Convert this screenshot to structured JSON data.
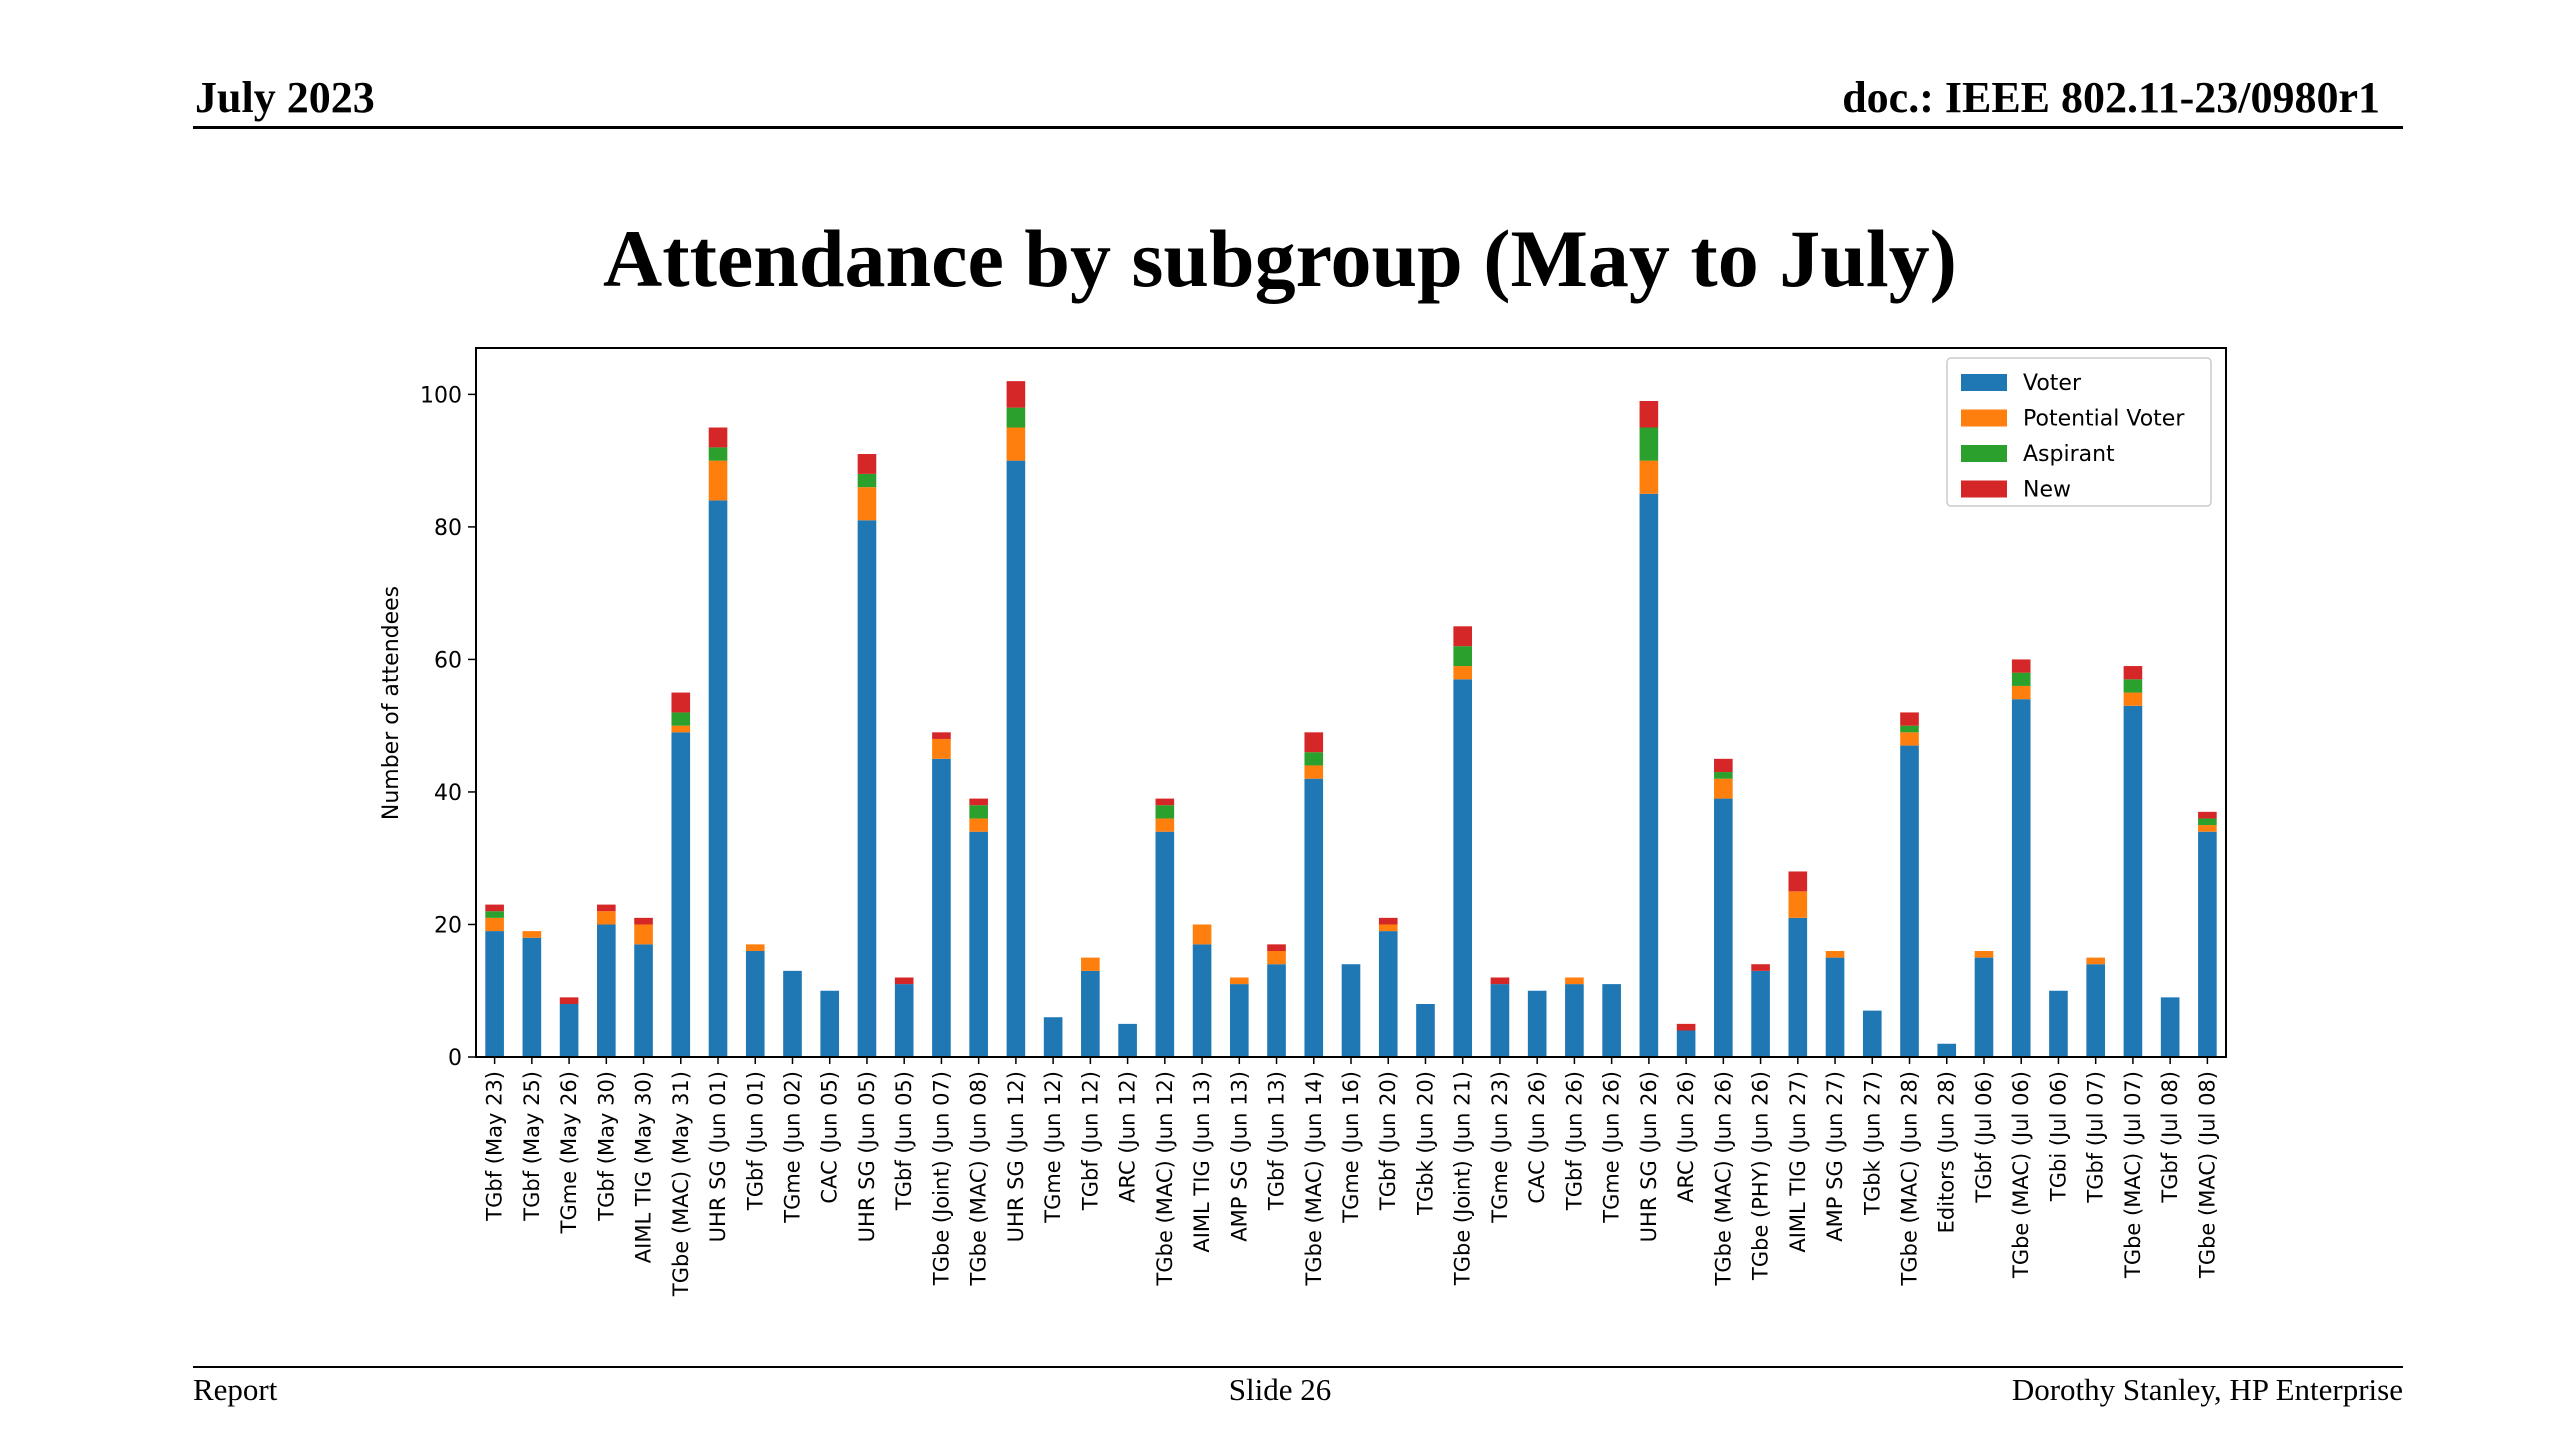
{
  "header": {
    "date": "July 2023",
    "doc_id": "doc.: IEEE 802.11-23/0980r1"
  },
  "slide_title": "Attendance by subgroup (May to July)",
  "footer": {
    "left": "Report",
    "center": "Slide 26",
    "right": "Dorothy Stanley, HP Enterprise"
  },
  "colors": {
    "Voter": "#1f77b4",
    "Potential Voter": "#ff7f0e",
    "Aspirant": "#2ca02c",
    "New": "#d62728"
  },
  "chart_data": {
    "type": "bar",
    "stacked": true,
    "title": "",
    "xlabel": "",
    "ylabel": "Number of attendees",
    "ylim": [
      0,
      107
    ],
    "yticks": [
      0,
      20,
      40,
      60,
      80,
      100
    ],
    "legend_position": "top-right",
    "grid": false,
    "categories": [
      "TGbf (May 23)",
      "TGbf (May 25)",
      "TGme (May 26)",
      "TGbf (May 30)",
      "AIML TIG (May 30)",
      "TGbe (MAC) (May 31)",
      "UHR SG (Jun 01)",
      "TGbf (Jun 01)",
      "TGme (Jun 02)",
      "CAC (Jun 05)",
      "UHR SG (Jun 05)",
      "TGbf (Jun 05)",
      "TGbe (Joint) (Jun 07)",
      "TGbe (MAC) (Jun 08)",
      "UHR SG (Jun 12)",
      "TGme (Jun 12)",
      "TGbf (Jun 12)",
      "ARC (Jun 12)",
      "TGbe (MAC) (Jun 12)",
      "AIML TIG (Jun 13)",
      "AMP SG (Jun 13)",
      "TGbf (Jun 13)",
      "TGbe (MAC) (Jun 14)",
      "TGme (Jun 16)",
      "TGbf (Jun 20)",
      "TGbk (Jun 20)",
      "TGbe (Joint) (Jun 21)",
      "TGme (Jun 23)",
      "CAC (Jun 26)",
      "TGbf (Jun 26)",
      "TGme (Jun 26)",
      "UHR SG (Jun 26)",
      "ARC (Jun 26)",
      "TGbe (MAC) (Jun 26)",
      "TGbe (PHY) (Jun 26)",
      "AIML TIG (Jun 27)",
      "AMP SG (Jun 27)",
      "TGbk (Jun 27)",
      "TGbe (MAC) (Jun 28)",
      "Editors (Jun 28)",
      "TGbf (Jul 06)",
      "TGbe (MAC) (Jul 06)",
      "TGbi (Jul 06)",
      "TGbf (Jul 07)",
      "TGbe (MAC) (Jul 07)",
      "TGbf (Jul 08)",
      "TGbe (MAC) (Jul 08)"
    ],
    "series": [
      {
        "name": "Voter",
        "values": [
          19,
          18,
          8,
          20,
          17,
          49,
          84,
          16,
          13,
          10,
          81,
          11,
          45,
          34,
          90,
          6,
          13,
          5,
          34,
          17,
          11,
          14,
          42,
          14,
          19,
          8,
          57,
          11,
          10,
          11,
          11,
          85,
          4,
          39,
          13,
          21,
          15,
          7,
          47,
          2,
          15,
          54,
          10,
          14,
          53,
          9,
          34
        ]
      },
      {
        "name": "Potential Voter",
        "values": [
          2,
          1,
          0,
          2,
          3,
          1,
          6,
          1,
          0,
          0,
          5,
          0,
          3,
          2,
          5,
          0,
          2,
          0,
          2,
          3,
          1,
          2,
          2,
          0,
          1,
          0,
          2,
          0,
          0,
          1,
          0,
          5,
          0,
          3,
          0,
          4,
          1,
          0,
          2,
          0,
          1,
          2,
          0,
          1,
          2,
          0,
          1
        ]
      },
      {
        "name": "Aspirant",
        "values": [
          1,
          0,
          0,
          0,
          0,
          2,
          2,
          0,
          0,
          0,
          2,
          0,
          0,
          2,
          3,
          0,
          0,
          0,
          2,
          0,
          0,
          0,
          2,
          0,
          0,
          0,
          3,
          0,
          0,
          0,
          0,
          5,
          0,
          1,
          0,
          0,
          0,
          0,
          1,
          0,
          0,
          2,
          0,
          0,
          2,
          0,
          1
        ]
      },
      {
        "name": "New",
        "values": [
          1,
          0,
          1,
          1,
          1,
          3,
          3,
          0,
          0,
          0,
          3,
          1,
          1,
          1,
          4,
          0,
          0,
          0,
          1,
          0,
          0,
          1,
          3,
          0,
          1,
          0,
          3,
          1,
          0,
          0,
          0,
          4,
          1,
          2,
          1,
          3,
          0,
          0,
          2,
          0,
          0,
          2,
          0,
          0,
          2,
          0,
          1
        ]
      }
    ]
  }
}
